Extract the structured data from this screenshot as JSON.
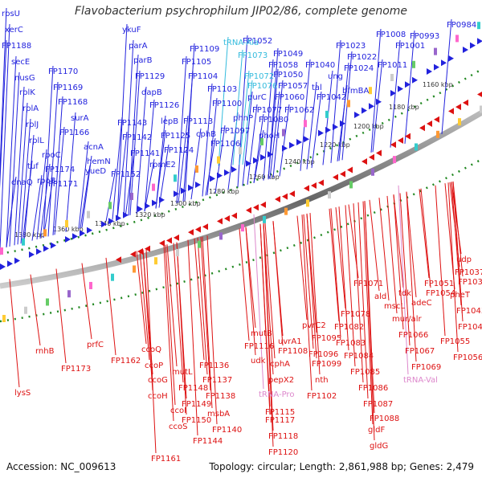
{
  "title": "Flavobacterium psychrophilum JIP02/86, complete genome",
  "footer": {
    "accession": "Accession: NC_009613",
    "summary": "Topology: circular; Length: 2,861,988 bp; Genes: 2,479"
  },
  "colors": {
    "forward_strand": "#2222dd",
    "reverse_strand": "#dd1111",
    "rna_gene": "#33bbdd",
    "pseudo_rna": "#dd88cc",
    "ruler": "#228822",
    "backbone": "#888888"
  },
  "ruler_labels": [
    "1380 kbp",
    "1360 kbp",
    "1340 kbp",
    "1320 kbp",
    "1300 kbp",
    "1280 kbp",
    "1260 kbp",
    "1240 kbp",
    "1220 kbp",
    "1200 kbp",
    "1180 kbp",
    "1160 kbp"
  ],
  "forward_labels": [
    "rpsU",
    "xerC",
    "FP1188",
    "secE",
    "nusG",
    "rplK",
    "rplA",
    "rplJ",
    "rplL",
    "tuf",
    "dnaQ",
    "FP1170",
    "FP1169",
    "FP1168",
    "surA",
    "FP1166",
    "acnA",
    "hemN",
    "yueD",
    "rpoC",
    "rpoB",
    "FP1174",
    "FP1171",
    "FP1152",
    "FP1143",
    "FP1142",
    "FP1141",
    "ykuF",
    "parA",
    "parB",
    "FP1129",
    "dapB",
    "FP1126",
    "lepB",
    "FP1125",
    "FP1124",
    "rpmE2",
    "FP1113",
    "FP1109",
    "FP1105",
    "FP1104",
    "FP1103",
    "FP1100",
    "phnP",
    "FP1097",
    "cphB",
    "FP1106",
    "FP1052",
    "FP1049",
    "FP1058",
    "FP1050",
    "FP1057",
    "FP1060",
    "FP1062",
    "purC",
    "FP1077",
    "FP1080",
    "phoH",
    "FP1040",
    "tal",
    "FP1042",
    "FP1023",
    "FP1022",
    "FP1024",
    "ung",
    "bfmBA",
    "FP1008",
    "FP1001",
    "FP0993",
    "FP0984",
    "FP1011"
  ],
  "rna_labels": [
    "tRNA-Ala",
    "FP1073",
    "FP1072",
    "FP1076"
  ],
  "reverse_labels": [
    "lysS",
    "rnhB",
    "FP1173",
    "prfC",
    "FP1162",
    "ccoQ",
    "ccoP",
    "ccoG",
    "ccoH",
    "ccoI",
    "ccoS",
    "FP1161",
    "mutL",
    "FP1148",
    "FP1149",
    "FP1150",
    "FP1144",
    "FP1136",
    "FP1137",
    "FP1138",
    "msbA",
    "FP1140",
    "mutB",
    "FP1116",
    "udk",
    "FP1115",
    "FP1117",
    "FP1118",
    "FP1120",
    "uvrA1",
    "FP1108",
    "cphA",
    "pepX2",
    "FP1095",
    "FP1096",
    "FP1099",
    "nth",
    "pvrC2",
    "FP1102",
    "FP1082",
    "FP1083",
    "FP1084",
    "FP1085",
    "FP1086",
    "FP1087",
    "FP1088",
    "gldF",
    "gldG",
    "FP1078",
    "FP1071",
    "ald",
    "mscL",
    "tdk",
    "FP1051",
    "FP1054",
    "adeC",
    "mur/alr",
    "FP1066",
    "FP1067",
    "FP1069",
    "FP1055",
    "FP1056",
    "FP1043",
    "FP1045",
    "udp",
    "FP1037",
    "FP1039",
    "pheT"
  ],
  "pseudo_labels": [
    "tRNA-Pro",
    "tRNA-Val"
  ]
}
